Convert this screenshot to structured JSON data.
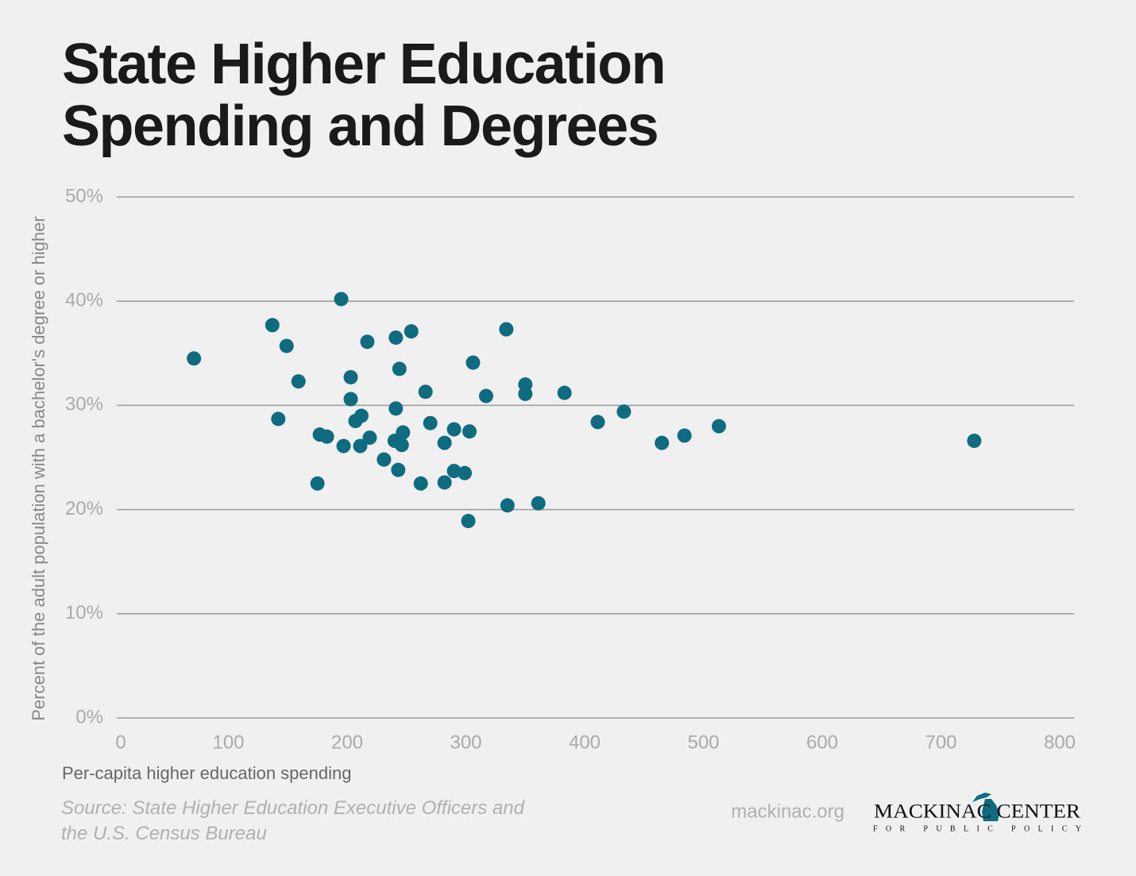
{
  "chart_data": {
    "type": "scatter",
    "title": "State Higher Education Spending and Degrees",
    "x_label": "Per-capita higher education spending",
    "y_label": "Percent of the adult population with a bachelor's degree or higher",
    "source": "Source: State Higher Education Executive Officers and the U.S. Census Bureau",
    "website": "mackinac.org",
    "logo_name": "MACKINAC CENTER",
    "logo_tagline": "FOR PUBLIC POLICY",
    "color": "#0f6b80",
    "grid": true,
    "xlim": [
      0,
      800
    ],
    "xticks": [
      0,
      100,
      200,
      300,
      400,
      500,
      600,
      700,
      800
    ],
    "ylim": [
      0,
      50
    ],
    "yticks": [
      {
        "value": 0,
        "label": "0%"
      },
      {
        "value": 10,
        "label": "10%"
      },
      {
        "value": 20,
        "label": "20%"
      },
      {
        "value": 30,
        "label": "30%"
      },
      {
        "value": 40,
        "label": "40%"
      },
      {
        "value": 50,
        "label": "50%"
      }
    ],
    "x": [
      71,
      137,
      149,
      159,
      142,
      195,
      217,
      241,
      254,
      244,
      203,
      203,
      207,
      212,
      177,
      183,
      197,
      211,
      219,
      175,
      241,
      240,
      247,
      246,
      231,
      243,
      262,
      266,
      270,
      282,
      290,
      303,
      306,
      317,
      290,
      299,
      282,
      302,
      334,
      350,
      350,
      383,
      335,
      361,
      411,
      433,
      465,
      484,
      513,
      728
    ],
    "values": [
      34.5,
      37.7,
      35.7,
      32.3,
      28.7,
      40.2,
      36.1,
      36.5,
      37.1,
      33.5,
      32.7,
      30.6,
      28.5,
      29.0,
      27.2,
      27.0,
      26.1,
      26.1,
      26.9,
      22.5,
      29.7,
      26.6,
      27.4,
      26.2,
      24.8,
      23.8,
      22.5,
      31.3,
      28.3,
      26.4,
      27.7,
      27.5,
      34.1,
      30.9,
      23.7,
      23.5,
      22.6,
      18.9,
      37.3,
      32.0,
      31.1,
      31.2,
      20.4,
      20.6,
      28.4,
      29.4,
      26.4,
      27.1,
      28.0,
      26.6
    ]
  }
}
